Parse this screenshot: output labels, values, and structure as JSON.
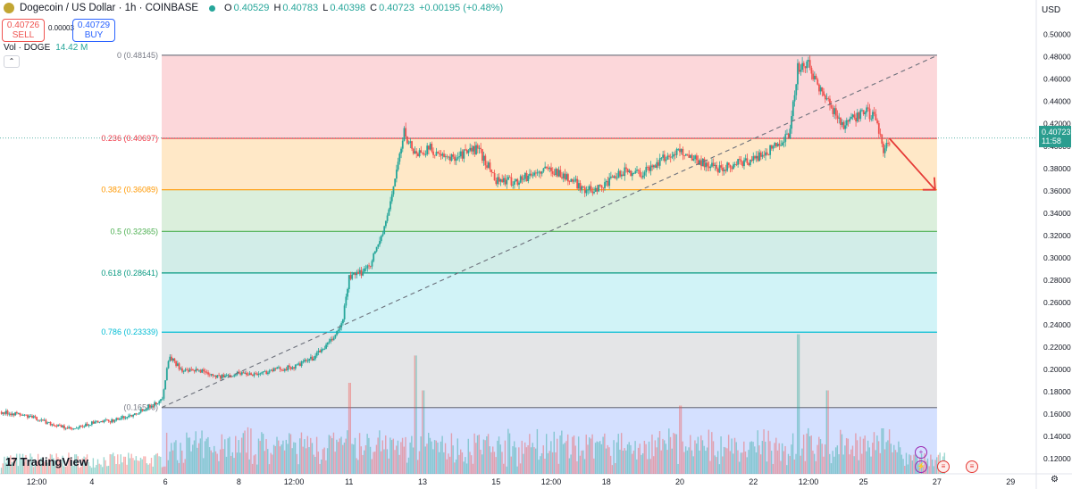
{
  "header": {
    "title": "Dogecoin / US Dollar · 1h · COINBASE",
    "open_label": "O",
    "open": "0.40529",
    "high_label": "H",
    "high": "0.40783",
    "low_label": "L",
    "low": "0.40398",
    "close_label": "C",
    "close": "0.40723",
    "change": "+0.00195 (+0.48%)",
    "sell_price": "0.40726",
    "sell_label": "SELL",
    "spread": "0.00003",
    "buy_price": "0.40729",
    "buy_label": "BUY",
    "vol_label": "Vol · DOGE",
    "vol_value": "14.42 M"
  },
  "currency_label": "USD",
  "last_price": {
    "value": "0.40723",
    "countdown": "11:58"
  },
  "branding": {
    "logo_text": "TradingView"
  },
  "colors": {
    "up": "#26a69a",
    "down": "#ef5350",
    "arrow": "#e53935",
    "price_tag": "#2a9d8f"
  },
  "chart_data": {
    "type": "candlestick",
    "y_ticks": [
      0.12,
      0.14,
      0.16,
      0.18,
      0.2,
      0.22,
      0.24,
      0.26,
      0.28,
      0.3,
      0.32,
      0.34,
      0.36,
      0.38,
      0.4,
      0.42,
      0.44,
      0.46,
      0.48,
      0.5
    ],
    "y_tick_labels": [
      "0.12000",
      "0.14000",
      "0.16000",
      "0.18000",
      "0.20000",
      "0.22000",
      "0.24000",
      "0.26000",
      "0.28000",
      "0.30000",
      "0.32000",
      "0.34000",
      "0.36000",
      "0.38000",
      "0.40000",
      "0.42000",
      "0.44000",
      "0.46000",
      "0.48000",
      "0.50000"
    ],
    "ylim": [
      0.1065,
      0.5165
    ],
    "x_range_days": [
      1.5,
      29.7
    ],
    "x_ticks": [
      {
        "day": 2.5,
        "label": "12:00"
      },
      {
        "day": 4,
        "label": "4"
      },
      {
        "day": 6,
        "label": "6"
      },
      {
        "day": 8,
        "label": "8"
      },
      {
        "day": 9.5,
        "label": "12:00"
      },
      {
        "day": 11,
        "label": "11"
      },
      {
        "day": 13,
        "label": "13"
      },
      {
        "day": 15,
        "label": "15"
      },
      {
        "day": 16.5,
        "label": "12:00"
      },
      {
        "day": 18,
        "label": "18"
      },
      {
        "day": 20,
        "label": "20"
      },
      {
        "day": 22,
        "label": "22"
      },
      {
        "day": 23.5,
        "label": "12:00"
      },
      {
        "day": 25,
        "label": "25"
      },
      {
        "day": 27,
        "label": "27"
      },
      {
        "day": 29,
        "label": "29"
      }
    ],
    "fib_start_day": 5.9,
    "fib_end_day": 27.0,
    "fib_levels": [
      {
        "ratio": "0",
        "price": 0.48145,
        "label": "0 (0.48145)",
        "color": "#787b86"
      },
      {
        "ratio": "0.236",
        "price": 0.40697,
        "label": "0.236 (0.40697)",
        "color": "#f23645"
      },
      {
        "ratio": "0.382",
        "price": 0.36089,
        "label": "0.382 (0.36089)",
        "color": "#ff9800"
      },
      {
        "ratio": "0.5",
        "price": 0.32365,
        "label": "0.5 (0.32365)",
        "color": "#4caf50"
      },
      {
        "ratio": "0.618",
        "price": 0.28641,
        "label": "0.618 (0.28641)",
        "color": "#089981"
      },
      {
        "ratio": "0.786",
        "price": 0.23339,
        "label": "0.786 (0.23339)",
        "color": "#00bcd4"
      },
      {
        "ratio": "1",
        "price": 0.16586,
        "label": "(0.16586)",
        "color": "#787b86"
      }
    ],
    "fib_band_colors": [
      "rgba(242,54,69,0.20)",
      "rgba(255,152,0,0.22)",
      "rgba(76,175,80,0.20)",
      "rgba(8,153,129,0.18)",
      "rgba(0,188,212,0.18)",
      "rgba(120,123,134,0.20)",
      "rgba(41,98,255,0.20)"
    ],
    "trendline": {
      "from": {
        "day": 5.9,
        "price": 0.1659
      },
      "to": {
        "day": 27.0,
        "price": 0.4812
      }
    },
    "projection_arrow": {
      "from": {
        "day": 25.7,
        "price": 0.407
      },
      "to": {
        "day": 26.95,
        "price": 0.3609
      }
    },
    "price_path": [
      [
        1.5,
        0.162
      ],
      [
        2.0,
        0.16
      ],
      [
        2.5,
        0.156
      ],
      [
        3.0,
        0.15
      ],
      [
        3.5,
        0.146
      ],
      [
        4.0,
        0.152
      ],
      [
        4.5,
        0.154
      ],
      [
        5.0,
        0.158
      ],
      [
        5.5,
        0.166
      ],
      [
        5.9,
        0.172
      ],
      [
        6.1,
        0.212
      ],
      [
        6.5,
        0.198
      ],
      [
        7.0,
        0.199
      ],
      [
        7.5,
        0.193
      ],
      [
        8.0,
        0.197
      ],
      [
        8.5,
        0.196
      ],
      [
        9.0,
        0.2
      ],
      [
        9.5,
        0.202
      ],
      [
        10.0,
        0.21
      ],
      [
        10.5,
        0.225
      ],
      [
        10.8,
        0.24
      ],
      [
        11.0,
        0.282
      ],
      [
        11.3,
        0.286
      ],
      [
        11.6,
        0.296
      ],
      [
        12.0,
        0.33
      ],
      [
        12.3,
        0.38
      ],
      [
        12.5,
        0.412
      ],
      [
        12.8,
        0.393
      ],
      [
        13.2,
        0.398
      ],
      [
        13.6,
        0.388
      ],
      [
        14.0,
        0.392
      ],
      [
        14.5,
        0.398
      ],
      [
        15.0,
        0.37
      ],
      [
        15.5,
        0.368
      ],
      [
        16.0,
        0.375
      ],
      [
        16.5,
        0.38
      ],
      [
        17.0,
        0.37
      ],
      [
        17.5,
        0.36
      ],
      [
        18.0,
        0.366
      ],
      [
        18.5,
        0.378
      ],
      [
        19.0,
        0.376
      ],
      [
        19.5,
        0.388
      ],
      [
        20.0,
        0.396
      ],
      [
        20.5,
        0.387
      ],
      [
        21.0,
        0.38
      ],
      [
        21.5,
        0.384
      ],
      [
        22.0,
        0.388
      ],
      [
        22.5,
        0.398
      ],
      [
        23.0,
        0.412
      ],
      [
        23.2,
        0.47
      ],
      [
        23.5,
        0.472
      ],
      [
        24.0,
        0.44
      ],
      [
        24.5,
        0.418
      ],
      [
        25.0,
        0.432
      ],
      [
        25.3,
        0.425
      ],
      [
        25.55,
        0.397
      ],
      [
        25.75,
        0.406
      ]
    ],
    "volume_spikes": [
      [
        11.0,
        0.6
      ],
      [
        12.8,
        0.78
      ],
      [
        13.0,
        0.55
      ],
      [
        20.0,
        0.45
      ],
      [
        23.2,
        0.92
      ],
      [
        24.0,
        0.55
      ],
      [
        25.5,
        0.3
      ]
    ]
  }
}
